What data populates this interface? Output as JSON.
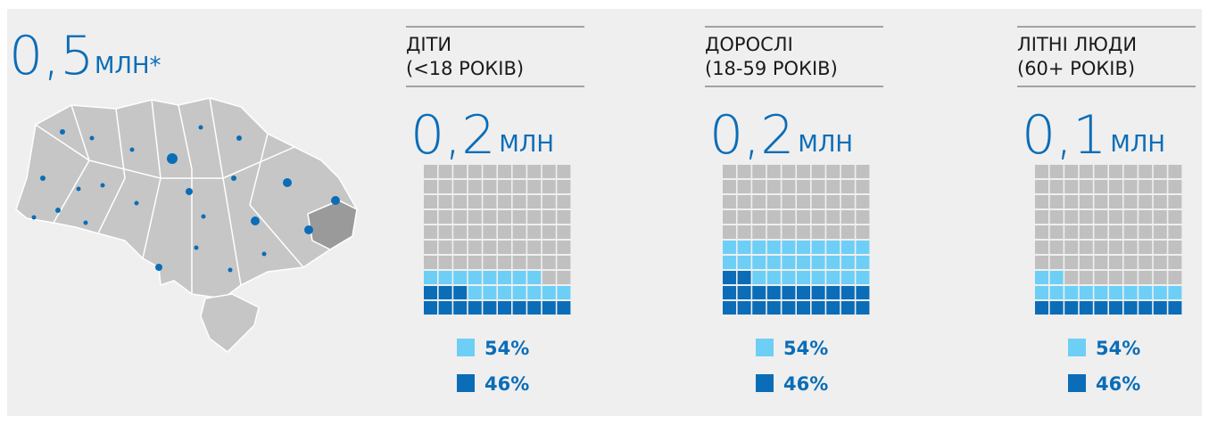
{
  "total": {
    "value": "0,5",
    "unit": "МЛН*"
  },
  "groups": [
    {
      "title_lines": [
        "ДІТИ",
        "(<18 РОКІВ)"
      ],
      "value": "0,2",
      "unit": "МЛН",
      "cells": {
        "dark": 13,
        "light": 15
      },
      "legend": [
        {
          "label": "54%",
          "color": "#6dcff6"
        },
        {
          "label": "46%",
          "color": "#0b6db7"
        }
      ]
    },
    {
      "title_lines": [
        "ДОРОСЛІ",
        "(18-59 РОКІВ)"
      ],
      "value": "0,2",
      "unit": "МЛН",
      "cells": {
        "dark": 22,
        "light": 28
      },
      "legend": [
        {
          "label": "54%",
          "color": "#6dcff6"
        },
        {
          "label": "46%",
          "color": "#0b6db7"
        }
      ]
    },
    {
      "title_lines": [
        "ЛІТНІ ЛЮДИ",
        "(60+ РОКІВ)"
      ],
      "value": "0,1",
      "unit": "МЛН",
      "cells": {
        "dark": 10,
        "light": 12
      },
      "legend": [
        {
          "label": "54%",
          "color": "#6dcff6"
        },
        {
          "label": "46%",
          "color": "#0b6db7"
        }
      ]
    }
  ]
}
